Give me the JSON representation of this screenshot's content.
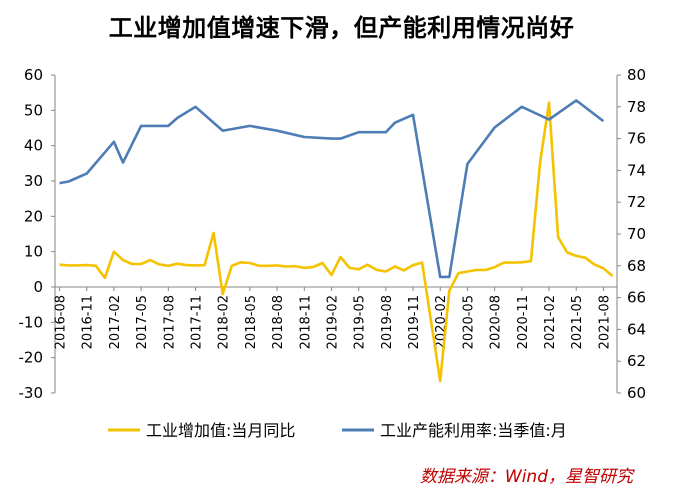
{
  "title": "工业增加值增速下滑，但产能利用情况尚好",
  "source": "数据来源：Wind，星智研究",
  "colors": {
    "ip": "#F5C200",
    "cu": "#4E7CB5",
    "axis": "#868686",
    "text": "#000000"
  },
  "chart_data": {
    "type": "line",
    "title": "工业增加值增速下滑，但产能利用情况尚好",
    "y_left": {
      "min": -30,
      "max": 60,
      "ticks": [
        -30,
        -20,
        -10,
        0,
        10,
        20,
        30,
        40,
        50,
        60
      ]
    },
    "y_right": {
      "min": 60,
      "max": 80,
      "ticks": [
        60,
        62,
        64,
        66,
        68,
        70,
        72,
        74,
        76,
        78,
        80
      ]
    },
    "x_tick_labels": [
      "2016-08",
      "2016-11",
      "2017-02",
      "2017-05",
      "2017-08",
      "2017-11",
      "2018-02",
      "2018-05",
      "2018-08",
      "2018-11",
      "2019-02",
      "2019-05",
      "2019-08",
      "2019-11",
      "2020-02",
      "2020-05",
      "2020-08",
      "2020-11",
      "2021-02",
      "2021-05",
      "2021-08"
    ],
    "legend_position": "bottom",
    "series": [
      {
        "name": "工业增加值:当月同比",
        "axis": "left",
        "x": [
          "2016-08",
          "2016-09",
          "2016-10",
          "2016-11",
          "2016-12",
          "2017-01",
          "2017-02",
          "2017-03",
          "2017-04",
          "2017-05",
          "2017-06",
          "2017-07",
          "2017-08",
          "2017-09",
          "2017-10",
          "2017-11",
          "2017-12",
          "2018-01",
          "2018-02",
          "2018-03",
          "2018-04",
          "2018-05",
          "2018-06",
          "2018-07",
          "2018-08",
          "2018-09",
          "2018-10",
          "2018-11",
          "2018-12",
          "2019-01",
          "2019-02",
          "2019-03",
          "2019-04",
          "2019-05",
          "2019-06",
          "2019-07",
          "2019-08",
          "2019-09",
          "2019-10",
          "2019-11",
          "2019-12",
          "2020-01",
          "2020-02",
          "2020-03",
          "2020-04",
          "2020-05",
          "2020-06",
          "2020-07",
          "2020-08",
          "2020-09",
          "2020-10",
          "2020-11",
          "2020-12",
          "2021-01",
          "2021-02",
          "2021-03",
          "2021-04",
          "2021-05",
          "2021-06",
          "2021-07",
          "2021-08",
          "2021-09"
        ],
        "values": [
          6.3,
          6.1,
          6.1,
          6.2,
          6.0,
          2.6,
          10.0,
          7.6,
          6.5,
          6.5,
          7.6,
          6.4,
          6.0,
          6.6,
          6.2,
          6.1,
          6.2,
          15.3,
          -2.0,
          6.0,
          7.0,
          6.8,
          6.0,
          6.0,
          6.1,
          5.8,
          5.9,
          5.4,
          5.7,
          6.8,
          3.4,
          8.5,
          5.4,
          5.0,
          6.3,
          4.8,
          4.4,
          5.8,
          4.7,
          6.2,
          6.9,
          -10.0,
          -26.6,
          -1.1,
          3.9,
          4.4,
          4.8,
          4.8,
          5.6,
          6.9,
          6.9,
          7.0,
          7.3,
          35.0,
          52.2,
          14.1,
          9.8,
          8.8,
          8.3,
          6.4,
          5.3,
          3.1
        ]
      },
      {
        "name": "工业产能利用率:当季值:月",
        "axis": "right",
        "x": [
          "2016-08",
          "2016-11",
          "2017-02",
          "2017-05",
          "2017-08",
          "2017-11",
          "2018-02",
          "2018-05",
          "2018-08",
          "2018-11",
          "2019-02",
          "2019-05",
          "2019-08",
          "2019-11",
          "2020-02",
          "2020-05",
          "2020-08",
          "2020-11",
          "2021-02",
          "2021-05",
          "2021-08"
        ],
        "values": [
          73.2,
          73.8,
          75.8,
          76.8,
          76.8,
          78.0,
          76.5,
          76.8,
          76.5,
          76.1,
          76.0,
          76.4,
          76.4,
          77.5,
          67.3,
          74.4,
          76.7,
          78.0,
          77.2,
          78.4,
          77.1
        ],
        "extra_points": {
          "x": [
            "2016-09",
            "2017-03",
            "2017-09",
            "2018-03",
            "2019-03",
            "2019-09",
            "2020-03",
            "2021-03"
          ],
          "values": [
            73.3,
            74.5,
            77.3,
            76.6,
            76.0,
            77.0,
            67.3,
            77.6
          ]
        }
      }
    ]
  }
}
